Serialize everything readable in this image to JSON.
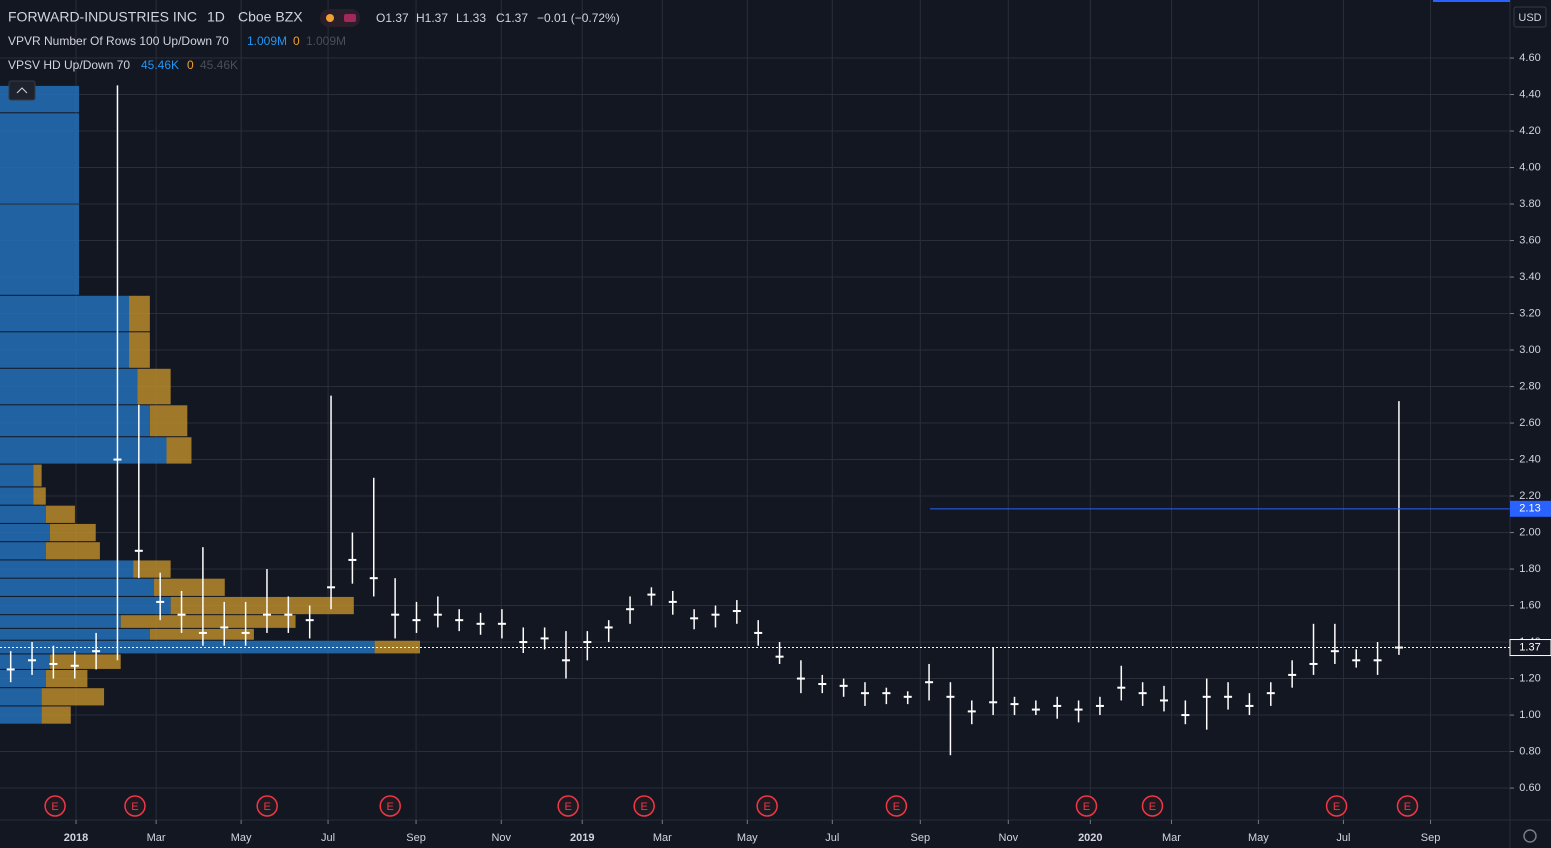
{
  "header": {
    "symbol": "FORWARD-INDUSTRIES INC",
    "interval": "1D",
    "exchange": "Cboe BZX",
    "ohlc": [
      "O1.37",
      "H1.37",
      "L1.33",
      "C1.37"
    ],
    "change": "−0.01 (−0.72%)",
    "currency": "USD"
  },
  "indicators": [
    {
      "name": "VPVR Number Of Rows 100 Up/Down 70",
      "values": [
        "1.009M",
        "0",
        "1.009M"
      ]
    },
    {
      "name": "VPSV HD Up/Down 70",
      "values": [
        "45.46K",
        "0",
        "45.46K"
      ]
    }
  ],
  "chart_data": {
    "type": "candlestick",
    "categories": [
      null,
      null,
      null,
      null,
      null,
      null,
      null,
      null,
      null,
      null,
      null,
      null,
      null,
      null,
      null,
      null,
      null,
      null,
      null,
      null,
      null,
      null,
      null,
      null,
      null,
      null,
      null,
      null,
      null,
      null,
      null,
      null,
      null,
      null,
      null,
      null,
      null,
      null,
      null,
      null,
      null,
      null,
      null,
      null,
      null,
      null,
      null,
      null,
      null,
      null,
      null,
      null,
      null,
      null,
      null,
      null,
      null,
      null,
      null,
      null,
      null,
      null,
      null,
      null,
      null,
      null
    ],
    "candles": {
      "color": "#ffffff",
      "high": [
        1.35,
        1.4,
        1.38,
        1.35,
        1.45,
        4.45,
        2.7,
        1.78,
        1.68,
        1.92,
        1.62,
        1.62,
        1.8,
        1.65,
        1.6,
        2.75,
        2.0,
        2.3,
        1.75,
        1.62,
        1.65,
        1.58,
        1.56,
        1.58,
        1.48,
        1.48,
        1.46,
        1.46,
        1.52,
        1.65,
        1.7,
        1.68,
        1.58,
        1.6,
        1.63,
        1.52,
        1.4,
        1.3,
        1.22,
        1.2,
        1.18,
        1.15,
        1.13,
        1.28,
        1.18,
        1.08,
        1.37,
        1.1,
        1.08,
        1.1,
        1.08,
        1.1,
        1.27,
        1.18,
        1.16,
        1.08,
        1.2,
        1.18,
        1.12,
        1.18,
        1.3,
        1.5,
        1.5,
        1.36,
        1.4,
        2.72
      ],
      "low": [
        1.18,
        1.22,
        1.2,
        1.2,
        1.25,
        1.3,
        1.75,
        1.52,
        1.45,
        1.38,
        1.38,
        1.38,
        1.45,
        1.45,
        1.42,
        1.58,
        1.72,
        1.65,
        1.42,
        1.45,
        1.48,
        1.46,
        1.44,
        1.42,
        1.34,
        1.36,
        1.2,
        1.3,
        1.4,
        1.5,
        1.6,
        1.55,
        1.47,
        1.48,
        1.5,
        1.38,
        1.28,
        1.12,
        1.12,
        1.1,
        1.05,
        1.06,
        1.06,
        1.08,
        0.78,
        0.95,
        1.0,
        1.0,
        1.0,
        0.98,
        0.96,
        1.0,
        1.08,
        1.05,
        1.02,
        0.95,
        0.92,
        1.03,
        1.0,
        1.05,
        1.15,
        1.22,
        1.28,
        1.26,
        1.22,
        1.33
      ],
      "close": [
        1.25,
        1.3,
        1.28,
        1.27,
        1.35,
        2.4,
        1.9,
        1.62,
        1.55,
        1.45,
        1.48,
        1.45,
        1.55,
        1.55,
        1.52,
        1.7,
        1.85,
        1.75,
        1.55,
        1.52,
        1.55,
        1.52,
        1.5,
        1.5,
        1.4,
        1.42,
        1.3,
        1.4,
        1.48,
        1.58,
        1.66,
        1.62,
        1.53,
        1.55,
        1.57,
        1.45,
        1.32,
        1.2,
        1.17,
        1.16,
        1.12,
        1.12,
        1.1,
        1.18,
        1.1,
        1.02,
        1.07,
        1.06,
        1.03,
        1.05,
        1.03,
        1.05,
        1.15,
        1.12,
        1.08,
        1.0,
        1.1,
        1.1,
        1.05,
        1.12,
        1.22,
        1.28,
        1.35,
        1.3,
        1.3,
        1.37
      ]
    },
    "volume_profile": {
      "up_color": "#2370b8",
      "down_color": "#b8892a",
      "rows": [
        {
          "price": 4.4,
          "up": 190,
          "down": 0
        },
        {
          "price": 4.2,
          "up": 190,
          "down": 0
        },
        {
          "price": 3.4,
          "up": 190,
          "down": 0
        },
        {
          "price": 3.2,
          "up": 310,
          "down": 50
        },
        {
          "price": 3.0,
          "up": 310,
          "down": 50
        },
        {
          "price": 2.8,
          "up": 330,
          "down": 80
        },
        {
          "price": 2.6,
          "up": 360,
          "down": 90
        },
        {
          "price": 2.45,
          "up": 400,
          "down": 60
        },
        {
          "price": 2.3,
          "up": 80,
          "down": 20
        },
        {
          "price": 2.2,
          "up": 80,
          "down": 30
        },
        {
          "price": 2.1,
          "up": 110,
          "down": 70
        },
        {
          "price": 2.0,
          "up": 120,
          "down": 110
        },
        {
          "price": 1.9,
          "up": 110,
          "down": 130
        },
        {
          "price": 1.8,
          "up": 320,
          "down": 90
        },
        {
          "price": 1.7,
          "up": 370,
          "down": 170
        },
        {
          "price": 1.6,
          "up": 410,
          "down": 440
        },
        {
          "price": 1.5,
          "up": 290,
          "down": 420
        },
        {
          "price": 1.45,
          "up": 360,
          "down": 250
        },
        {
          "price": 1.37,
          "up": 900,
          "down": 109
        },
        {
          "price": 1.3,
          "up": 120,
          "down": 170
        },
        {
          "price": 1.2,
          "up": 110,
          "down": 100
        },
        {
          "price": 1.1,
          "up": 100,
          "down": 150
        },
        {
          "price": 1.0,
          "up": 100,
          "down": 70
        }
      ]
    },
    "earnings": {
      "label": "E",
      "color": "#f23645",
      "at": [
        2.08,
        5.82,
        12.01,
        17.77,
        26.1,
        29.66,
        35.42,
        41.47,
        50.37,
        53.46,
        62.08,
        65.4
      ]
    },
    "price_lines": [
      {
        "value": 2.13,
        "label": "2.13",
        "color": "#2962ff"
      },
      {
        "value": 1.37,
        "label": "1.37",
        "color": "#ffffff"
      }
    ],
    "xlim": [
      -0.5,
      70.2
    ],
    "xticks": [
      {
        "value": 3.06,
        "label": "2018"
      },
      {
        "value": 6.81,
        "label": "Mar"
      },
      {
        "value": 10.79,
        "label": "May"
      },
      {
        "value": 14.86,
        "label": "Jul"
      },
      {
        "value": 18.98,
        "label": "Sep"
      },
      {
        "value": 22.97,
        "label": "Nov"
      },
      {
        "value": 26.76,
        "label": "2019"
      },
      {
        "value": 30.51,
        "label": "Mar"
      },
      {
        "value": 34.49,
        "label": "May"
      },
      {
        "value": 38.47,
        "label": "Jul"
      },
      {
        "value": 42.59,
        "label": "Sep"
      },
      {
        "value": 46.71,
        "label": "Nov"
      },
      {
        "value": 50.55,
        "label": "2020"
      },
      {
        "value": 54.35,
        "label": "Mar"
      },
      {
        "value": 58.42,
        "label": "May"
      },
      {
        "value": 62.4,
        "label": "Jul"
      },
      {
        "value": 66.48,
        "label": "Sep"
      }
    ],
    "ylim": [
      0.425,
      4.918
    ],
    "yticks": [
      {
        "value": 0.6,
        "label": "0.60"
      },
      {
        "value": 0.8,
        "label": "0.80"
      },
      {
        "value": 1.0,
        "label": "1.00"
      },
      {
        "value": 1.2,
        "label": "1.20"
      },
      {
        "value": 1.4,
        "label": "1.40"
      },
      {
        "value": 1.6,
        "label": "1.60"
      },
      {
        "value": 1.8,
        "label": "1.80"
      },
      {
        "value": 2.0,
        "label": "2.00"
      },
      {
        "value": 2.2,
        "label": "2.20"
      },
      {
        "value": 2.4,
        "label": "2.40"
      },
      {
        "value": 2.6,
        "label": "2.60"
      },
      {
        "value": 2.8,
        "label": "2.80"
      },
      {
        "value": 3.0,
        "label": "3.00"
      },
      {
        "value": 3.2,
        "label": "3.20"
      },
      {
        "value": 3.4,
        "label": "3.40"
      },
      {
        "value": 3.6,
        "label": "3.60"
      },
      {
        "value": 3.8,
        "label": "3.80"
      },
      {
        "value": 4.0,
        "label": "4.00"
      },
      {
        "value": 4.2,
        "label": "4.20"
      },
      {
        "value": 4.4,
        "label": "4.40"
      },
      {
        "value": 4.6,
        "label": "4.60"
      }
    ],
    "grid": true
  }
}
